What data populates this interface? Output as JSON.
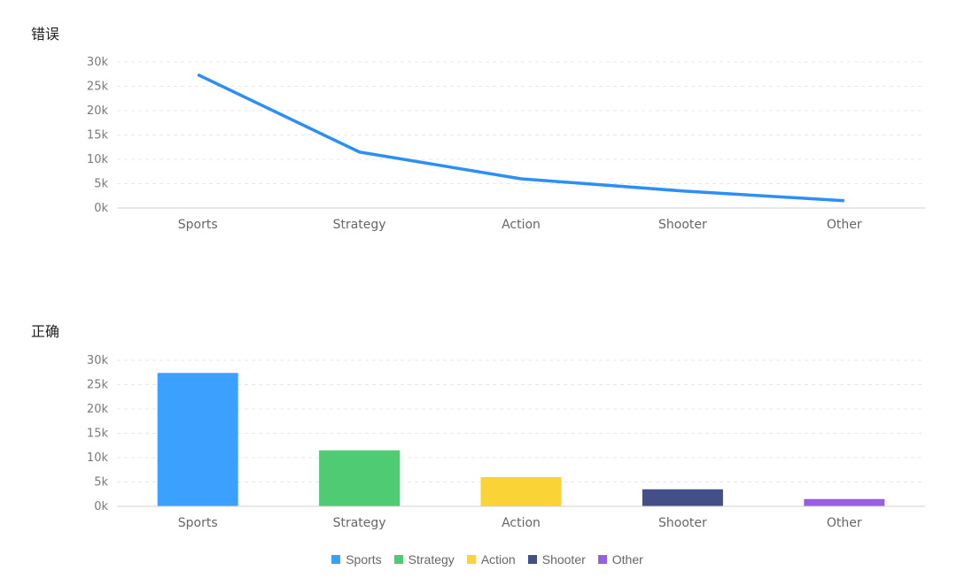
{
  "chart_data": [
    {
      "type": "line",
      "title": "错误",
      "categories": [
        "Sports",
        "Strategy",
        "Action",
        "Shooter",
        "Other"
      ],
      "values": [
        27400,
        11500,
        6000,
        3500,
        1500
      ],
      "yticks": [
        "0k",
        "5k",
        "10k",
        "15k",
        "20k",
        "25k",
        "30k"
      ],
      "ylim": [
        0,
        30000
      ],
      "grid": true,
      "line_color": "#2b8ff5"
    },
    {
      "type": "bar",
      "title": "正确",
      "categories": [
        "Sports",
        "Strategy",
        "Action",
        "Shooter",
        "Other"
      ],
      "values": [
        27400,
        11500,
        6000,
        3500,
        1500
      ],
      "yticks": [
        "0k",
        "5k",
        "10k",
        "15k",
        "20k",
        "25k",
        "30k"
      ],
      "ylim": [
        0,
        30000
      ],
      "grid": true,
      "colors": [
        "#3ba0ff",
        "#4ecb73",
        "#fad337",
        "#435088",
        "#975fe4"
      ],
      "legend_position": "bottom"
    }
  ],
  "legend": [
    {
      "label": "Sports",
      "color": "#3ba0ff"
    },
    {
      "label": "Strategy",
      "color": "#4ecb73"
    },
    {
      "label": "Action",
      "color": "#fad337"
    },
    {
      "label": "Shooter",
      "color": "#435088"
    },
    {
      "label": "Other",
      "color": "#975fe4"
    }
  ]
}
